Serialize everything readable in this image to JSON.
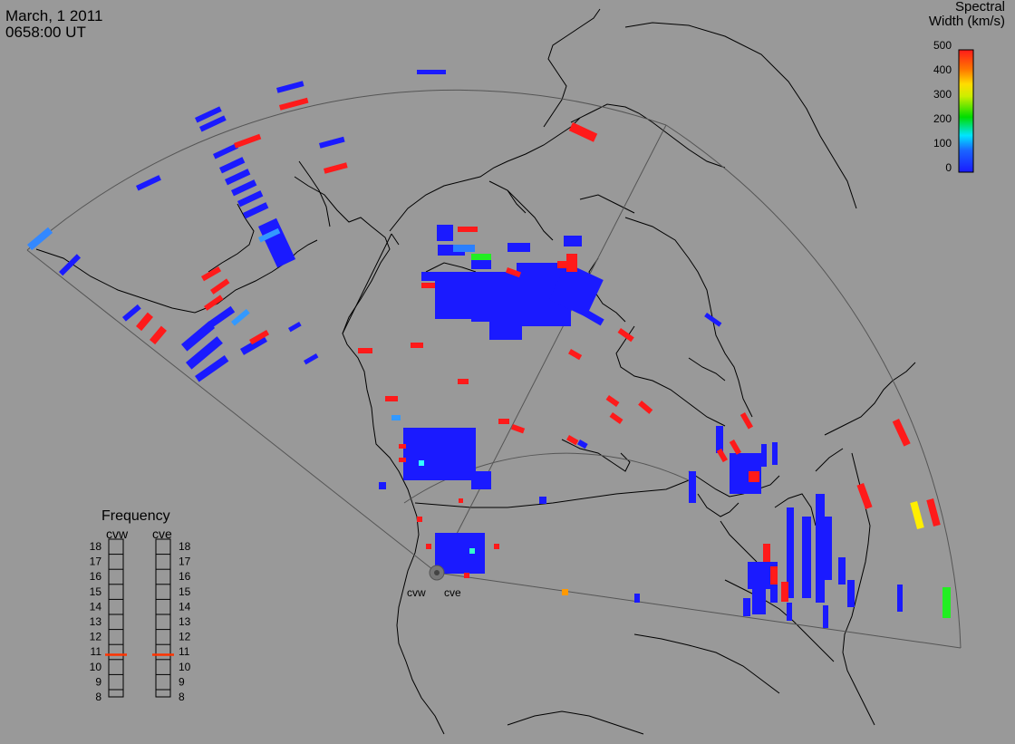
{
  "title": {
    "date": "March, 1 2011",
    "time": "0658:00 UT"
  },
  "colorbar": {
    "title_line1": "Spectral",
    "title_line2": "Width (km/s)",
    "ticks": [
      "0",
      "100",
      "200",
      "300",
      "400",
      "500"
    ],
    "range": [
      0,
      500
    ]
  },
  "radars": [
    {
      "name": "cvw"
    },
    {
      "name": "cve"
    }
  ],
  "frequency_panel": {
    "title": "Frequency",
    "ticks": [
      "8",
      "9",
      "10",
      "11",
      "12",
      "13",
      "14",
      "15",
      "16",
      "17",
      "18"
    ],
    "range_mhz": [
      8,
      18
    ],
    "radars": [
      {
        "name": "cvw",
        "frequency_mhz": 10.8
      },
      {
        "name": "cve",
        "frequency_mhz": 10.8
      }
    ]
  },
  "colors": {
    "background": "#999999",
    "low_width": "#1a1aff",
    "high_width": "#ff1a1a",
    "frequency_marker": "#ff3300"
  }
}
